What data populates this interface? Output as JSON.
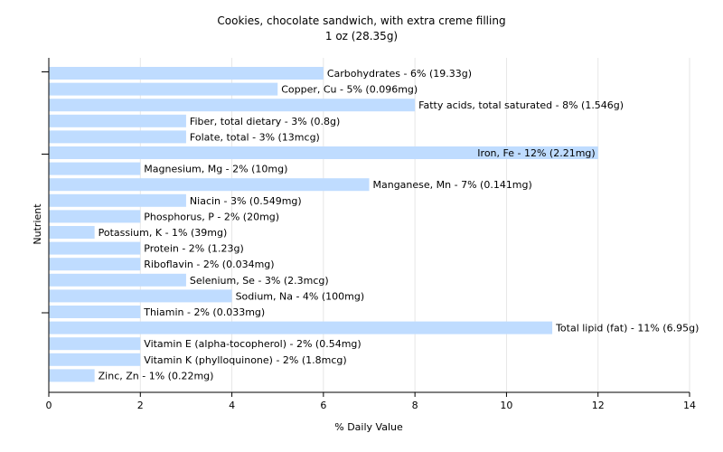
{
  "chart_data": {
    "type": "bar",
    "orientation": "horizontal",
    "title": "Cookies, chocolate sandwich, with extra creme filling",
    "subtitle": "1 oz (28.35g)",
    "xlabel": "% Daily Value",
    "ylabel": "Nutrient",
    "xlim": [
      0,
      14
    ],
    "xticks": [
      0,
      2,
      4,
      6,
      8,
      10,
      12,
      14
    ],
    "grid": true,
    "bar_color": "#bfdcff",
    "categories": [
      "Carbohydrates",
      "Copper, Cu",
      "Fatty acids, total saturated",
      "Fiber, total dietary",
      "Folate, total",
      "Iron, Fe",
      "Magnesium, Mg",
      "Manganese, Mn",
      "Niacin",
      "Phosphorus, P",
      "Potassium, K",
      "Protein",
      "Riboflavin",
      "Selenium, Se",
      "Sodium, Na",
      "Thiamin",
      "Total lipid (fat)",
      "Vitamin E (alpha-tocopherol)",
      "Vitamin K (phylloquinone)",
      "Zinc, Zn"
    ],
    "values": [
      6,
      5,
      8,
      3,
      3,
      12,
      2,
      7,
      3,
      2,
      1,
      2,
      2,
      3,
      4,
      2,
      11,
      2,
      2,
      1
    ],
    "labels": [
      "Carbohydrates - 6% (19.33g)",
      "Copper, Cu - 5% (0.096mg)",
      "Fatty acids, total saturated - 8% (1.546g)",
      "Fiber, total dietary - 3% (0.8g)",
      "Folate, total - 3% (13mcg)",
      "Iron, Fe - 12% (2.21mg)",
      "Magnesium, Mg - 2% (10mg)",
      "Manganese, Mn - 7% (0.141mg)",
      "Niacin - 3% (0.549mg)",
      "Phosphorus, P - 2% (20mg)",
      "Potassium, K - 1% (39mg)",
      "Protein - 2% (1.23g)",
      "Riboflavin - 2% (0.034mg)",
      "Selenium, Se - 3% (2.3mcg)",
      "Sodium, Na - 4% (100mg)",
      "Thiamin - 2% (0.033mg)",
      "Total lipid (fat) - 11% (6.95g)",
      "Vitamin E (alpha-tocopherol) - 2% (0.54mg)",
      "Vitamin K (phylloquinone) - 2% (1.8mcg)",
      "Zinc, Zn - 1% (0.22mg)"
    ]
  }
}
